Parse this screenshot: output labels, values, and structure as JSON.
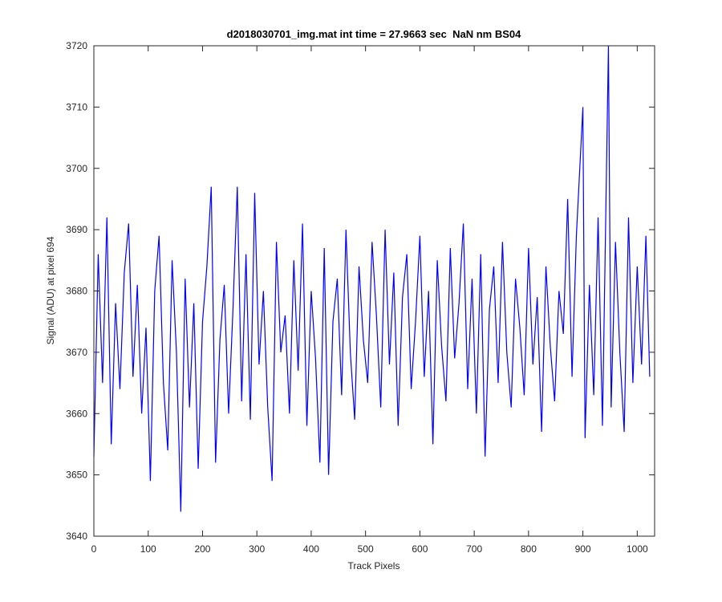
{
  "chart_data": {
    "type": "line",
    "title": "d2018030701_img.mat int time = 27.9663 sec  NaN nm BS04",
    "xlabel": "Track Pixels",
    "ylabel": "Signal (ADU) at pixel 694",
    "xlim": [
      0,
      1032
    ],
    "ylim": [
      3640,
      3720
    ],
    "xticks": [
      0,
      100,
      200,
      300,
      400,
      500,
      600,
      700,
      800,
      900,
      1000
    ],
    "yticks": [
      3640,
      3650,
      3660,
      3670,
      3680,
      3690,
      3700,
      3710,
      3720
    ],
    "grid": false,
    "series": [
      {
        "color": "#0000ff",
        "x": [
          0,
          8,
          16,
          24,
          32,
          40,
          48,
          56,
          64,
          72,
          80,
          88,
          96,
          104,
          112,
          120,
          128,
          136,
          144,
          152,
          160,
          168,
          176,
          184,
          192,
          200,
          208,
          216,
          224,
          232,
          240,
          248,
          256,
          264,
          272,
          280,
          288,
          296,
          304,
          312,
          320,
          328,
          336,
          344,
          352,
          360,
          368,
          376,
          384,
          392,
          400,
          408,
          416,
          424,
          432,
          440,
          448,
          456,
          464,
          472,
          480,
          488,
          496,
          504,
          512,
          520,
          528,
          536,
          544,
          552,
          560,
          568,
          576,
          584,
          592,
          600,
          608,
          616,
          624,
          632,
          640,
          648,
          656,
          664,
          672,
          680,
          688,
          696,
          704,
          712,
          720,
          728,
          736,
          744,
          752,
          760,
          768,
          776,
          784,
          792,
          800,
          808,
          816,
          824,
          832,
          840,
          848,
          856,
          864,
          872,
          880,
          888,
          900,
          904,
          912,
          920,
          928,
          936,
          947,
          952,
          960,
          968,
          976,
          984,
          992,
          1000,
          1008,
          1016,
          1023
        ],
        "values": [
          3653,
          3686,
          3665,
          3692,
          3655,
          3678,
          3664,
          3683,
          3691,
          3666,
          3681,
          3660,
          3674,
          3649,
          3680,
          3689,
          3665,
          3654,
          3685,
          3670,
          3644,
          3682,
          3661,
          3678,
          3651,
          3675,
          3684,
          3697,
          3652,
          3672,
          3681,
          3660,
          3677,
          3697,
          3662,
          3686,
          3659,
          3696,
          3668,
          3680,
          3661,
          3649,
          3688,
          3670,
          3676,
          3660,
          3685,
          3667,
          3691,
          3658,
          3680,
          3669,
          3652,
          3687,
          3650,
          3675,
          3682,
          3663,
          3690,
          3670,
          3659,
          3684,
          3672,
          3665,
          3688,
          3676,
          3661,
          3690,
          3668,
          3683,
          3658,
          3679,
          3686,
          3664,
          3675,
          3689,
          3666,
          3680,
          3655,
          3685,
          3671,
          3662,
          3687,
          3669,
          3678,
          3691,
          3664,
          3682,
          3660,
          3686,
          3653,
          3677,
          3684,
          3665,
          3688,
          3670,
          3661,
          3682,
          3674,
          3663,
          3687,
          3668,
          3679,
          3657,
          3684,
          3671,
          3662,
          3680,
          3673,
          3695,
          3666,
          3689,
          3710,
          3656,
          3681,
          3663,
          3692,
          3658,
          3720,
          3661,
          3688,
          3670,
          3657,
          3692,
          3665,
          3684,
          3668,
          3689,
          3666
        ]
      }
    ]
  }
}
